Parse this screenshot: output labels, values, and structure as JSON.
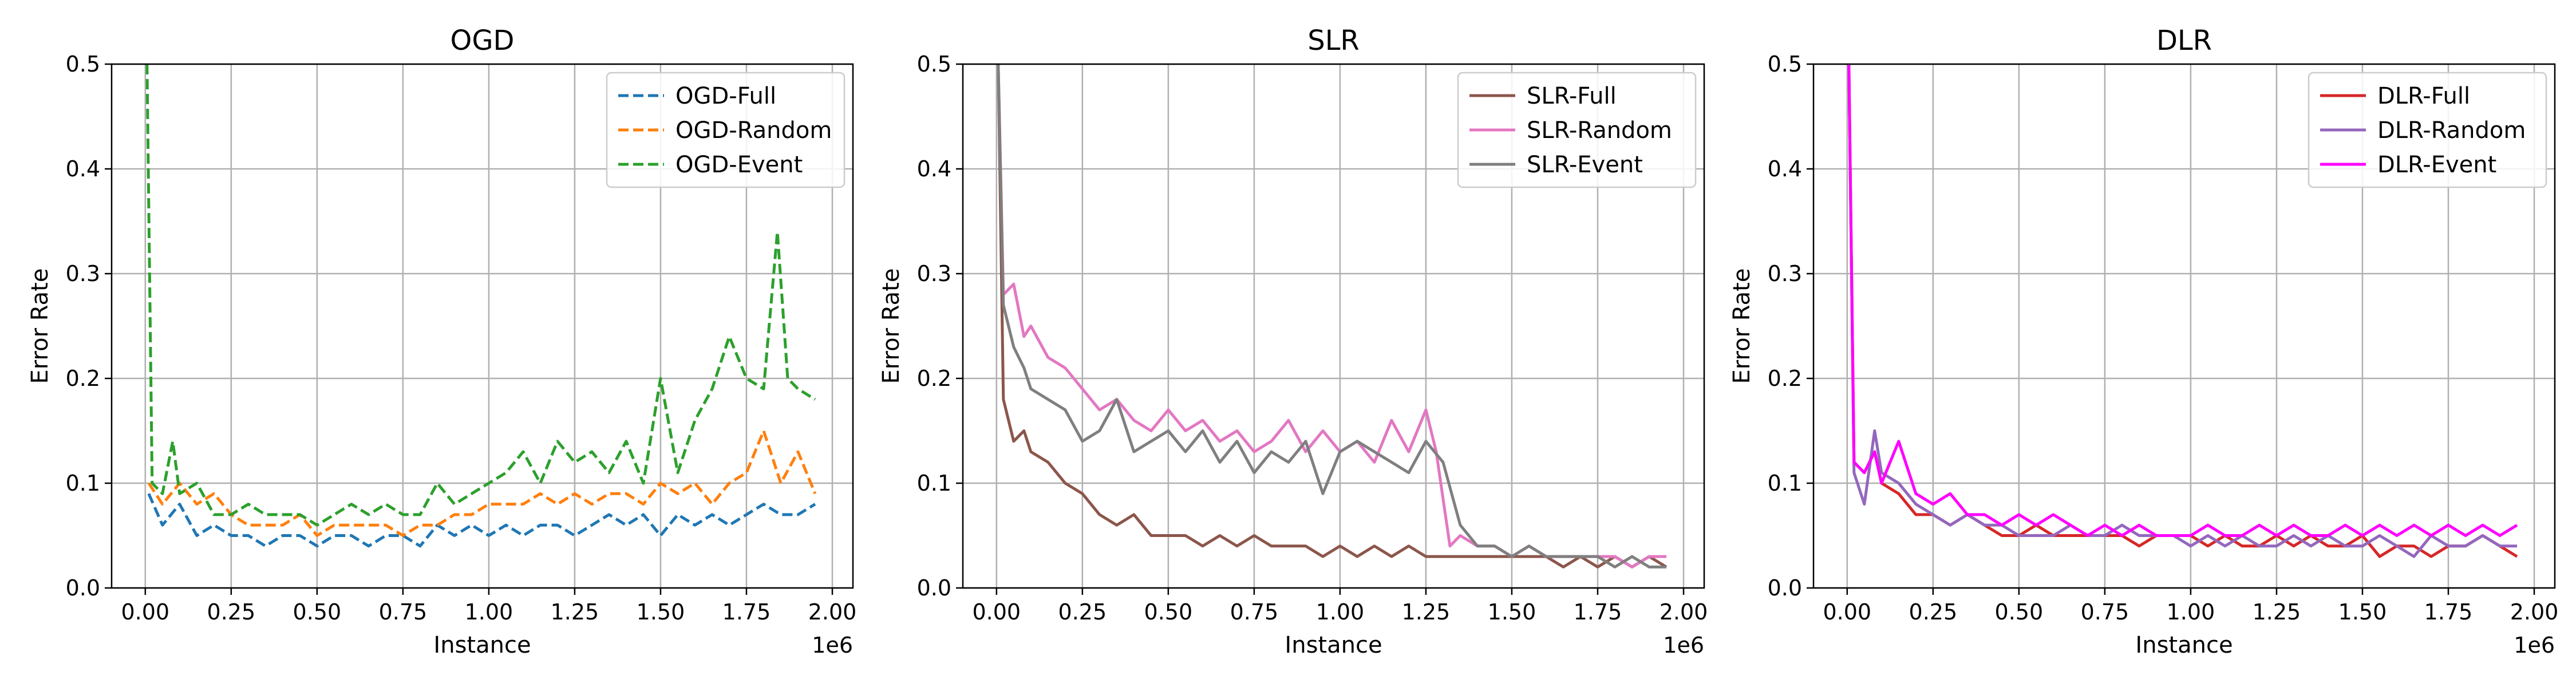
{
  "chart_data": [
    {
      "type": "line",
      "title": "OGD",
      "xlabel": "Instance",
      "ylabel": "Error Rate",
      "x_offset_label": "1e6",
      "xlim": [
        -0.098,
        2.06
      ],
      "ylim": [
        0,
        0.5
      ],
      "xticks": [
        "0.00",
        "0.25",
        "0.50",
        "0.75",
        "1.00",
        "1.25",
        "1.50",
        "1.75",
        "2.00"
      ],
      "yticks": [
        "0.0",
        "0.1",
        "0.2",
        "0.3",
        "0.4",
        "0.5"
      ],
      "grid": true,
      "legend_position": "top-right",
      "series": [
        {
          "name": "OGD-Full",
          "color": "#1f77b4",
          "dash": "dashed",
          "x": [
            0.01,
            0.05,
            0.1,
            0.15,
            0.2,
            0.25,
            0.3,
            0.35,
            0.4,
            0.45,
            0.5,
            0.55,
            0.6,
            0.65,
            0.7,
            0.75,
            0.8,
            0.85,
            0.9,
            0.95,
            1.0,
            1.05,
            1.1,
            1.15,
            1.2,
            1.25,
            1.3,
            1.35,
            1.4,
            1.45,
            1.5,
            1.55,
            1.6,
            1.65,
            1.7,
            1.75,
            1.8,
            1.85,
            1.9,
            1.95
          ],
          "y": [
            0.09,
            0.06,
            0.08,
            0.05,
            0.06,
            0.05,
            0.05,
            0.04,
            0.05,
            0.05,
            0.04,
            0.05,
            0.05,
            0.04,
            0.05,
            0.05,
            0.04,
            0.06,
            0.05,
            0.06,
            0.05,
            0.06,
            0.05,
            0.06,
            0.06,
            0.05,
            0.06,
            0.07,
            0.06,
            0.07,
            0.05,
            0.07,
            0.06,
            0.07,
            0.06,
            0.07,
            0.08,
            0.07,
            0.07,
            0.08
          ]
        },
        {
          "name": "OGD-Random",
          "color": "#ff7f0e",
          "dash": "dashed",
          "x": [
            0.01,
            0.05,
            0.1,
            0.15,
            0.2,
            0.25,
            0.3,
            0.35,
            0.4,
            0.45,
            0.5,
            0.55,
            0.6,
            0.65,
            0.7,
            0.75,
            0.8,
            0.85,
            0.9,
            0.95,
            1.0,
            1.05,
            1.1,
            1.15,
            1.2,
            1.25,
            1.3,
            1.35,
            1.4,
            1.45,
            1.5,
            1.55,
            1.6,
            1.65,
            1.7,
            1.75,
            1.8,
            1.85,
            1.9,
            1.95
          ],
          "y": [
            0.1,
            0.08,
            0.1,
            0.08,
            0.09,
            0.07,
            0.06,
            0.06,
            0.06,
            0.07,
            0.05,
            0.06,
            0.06,
            0.06,
            0.06,
            0.05,
            0.06,
            0.06,
            0.07,
            0.07,
            0.08,
            0.08,
            0.08,
            0.09,
            0.08,
            0.09,
            0.08,
            0.09,
            0.09,
            0.08,
            0.1,
            0.09,
            0.1,
            0.08,
            0.1,
            0.11,
            0.15,
            0.1,
            0.13,
            0.09
          ]
        },
        {
          "name": "OGD-Event",
          "color": "#2ca02c",
          "dash": "dashed",
          "x": [
            0.005,
            0.02,
            0.05,
            0.08,
            0.1,
            0.15,
            0.2,
            0.25,
            0.3,
            0.35,
            0.4,
            0.45,
            0.5,
            0.55,
            0.6,
            0.65,
            0.7,
            0.75,
            0.8,
            0.85,
            0.9,
            0.95,
            1.0,
            1.05,
            1.1,
            1.15,
            1.2,
            1.25,
            1.3,
            1.35,
            1.4,
            1.45,
            1.5,
            1.55,
            1.6,
            1.65,
            1.7,
            1.75,
            1.8,
            1.84,
            1.87,
            1.9,
            1.95
          ],
          "y": [
            0.5,
            0.1,
            0.09,
            0.14,
            0.09,
            0.1,
            0.07,
            0.07,
            0.08,
            0.07,
            0.07,
            0.07,
            0.06,
            0.07,
            0.08,
            0.07,
            0.08,
            0.07,
            0.07,
            0.1,
            0.08,
            0.09,
            0.1,
            0.11,
            0.13,
            0.1,
            0.14,
            0.12,
            0.13,
            0.11,
            0.14,
            0.1,
            0.2,
            0.11,
            0.16,
            0.19,
            0.24,
            0.2,
            0.19,
            0.34,
            0.2,
            0.19,
            0.18
          ]
        }
      ]
    },
    {
      "type": "line",
      "title": "SLR",
      "xlabel": "Instance",
      "ylabel": "Error Rate",
      "x_offset_label": "1e6",
      "xlim": [
        -0.098,
        2.06
      ],
      "ylim": [
        0,
        0.5
      ],
      "xticks": [
        "0.00",
        "0.25",
        "0.50",
        "0.75",
        "1.00",
        "1.25",
        "1.50",
        "1.75",
        "2.00"
      ],
      "yticks": [
        "0.0",
        "0.1",
        "0.2",
        "0.3",
        "0.4",
        "0.5"
      ],
      "grid": true,
      "legend_position": "top-right",
      "series": [
        {
          "name": "SLR-Full",
          "color": "#8c564b",
          "dash": "solid",
          "x": [
            0.005,
            0.02,
            0.05,
            0.08,
            0.1,
            0.15,
            0.2,
            0.25,
            0.3,
            0.35,
            0.4,
            0.45,
            0.5,
            0.55,
            0.6,
            0.65,
            0.7,
            0.75,
            0.8,
            0.85,
            0.9,
            0.95,
            1.0,
            1.05,
            1.1,
            1.15,
            1.2,
            1.25,
            1.3,
            1.35,
            1.4,
            1.45,
            1.5,
            1.55,
            1.6,
            1.65,
            1.7,
            1.75,
            1.8,
            1.85,
            1.9,
            1.95
          ],
          "y": [
            0.5,
            0.18,
            0.14,
            0.15,
            0.13,
            0.12,
            0.1,
            0.09,
            0.07,
            0.06,
            0.07,
            0.05,
            0.05,
            0.05,
            0.04,
            0.05,
            0.04,
            0.05,
            0.04,
            0.04,
            0.04,
            0.03,
            0.04,
            0.03,
            0.04,
            0.03,
            0.04,
            0.03,
            0.03,
            0.03,
            0.03,
            0.03,
            0.03,
            0.03,
            0.03,
            0.02,
            0.03,
            0.02,
            0.03,
            0.02,
            0.03,
            0.02
          ]
        },
        {
          "name": "SLR-Random",
          "color": "#e377c2",
          "dash": "solid",
          "x": [
            0.005,
            0.02,
            0.05,
            0.08,
            0.1,
            0.15,
            0.2,
            0.25,
            0.3,
            0.35,
            0.4,
            0.45,
            0.5,
            0.55,
            0.6,
            0.65,
            0.7,
            0.75,
            0.8,
            0.85,
            0.9,
            0.95,
            1.0,
            1.05,
            1.1,
            1.15,
            1.2,
            1.25,
            1.28,
            1.32,
            1.35,
            1.4,
            1.45,
            1.5,
            1.55,
            1.6,
            1.65,
            1.7,
            1.75,
            1.8,
            1.85,
            1.9,
            1.95
          ],
          "y": [
            0.5,
            0.28,
            0.29,
            0.24,
            0.25,
            0.22,
            0.21,
            0.19,
            0.17,
            0.18,
            0.16,
            0.15,
            0.17,
            0.15,
            0.16,
            0.14,
            0.15,
            0.13,
            0.14,
            0.16,
            0.13,
            0.15,
            0.13,
            0.14,
            0.12,
            0.16,
            0.13,
            0.17,
            0.13,
            0.04,
            0.05,
            0.04,
            0.04,
            0.03,
            0.04,
            0.03,
            0.03,
            0.03,
            0.03,
            0.03,
            0.02,
            0.03,
            0.03
          ]
        },
        {
          "name": "SLR-Event",
          "color": "#7f7f7f",
          "dash": "solid",
          "x": [
            0.005,
            0.02,
            0.05,
            0.08,
            0.1,
            0.15,
            0.2,
            0.25,
            0.3,
            0.35,
            0.4,
            0.45,
            0.5,
            0.55,
            0.6,
            0.65,
            0.7,
            0.75,
            0.8,
            0.85,
            0.9,
            0.95,
            1.0,
            1.05,
            1.1,
            1.15,
            1.2,
            1.25,
            1.3,
            1.35,
            1.4,
            1.45,
            1.5,
            1.55,
            1.6,
            1.65,
            1.7,
            1.75,
            1.8,
            1.85,
            1.9,
            1.95
          ],
          "y": [
            0.5,
            0.27,
            0.23,
            0.21,
            0.19,
            0.18,
            0.17,
            0.14,
            0.15,
            0.18,
            0.13,
            0.14,
            0.15,
            0.13,
            0.15,
            0.12,
            0.14,
            0.11,
            0.13,
            0.12,
            0.14,
            0.09,
            0.13,
            0.14,
            0.13,
            0.12,
            0.11,
            0.14,
            0.12,
            0.06,
            0.04,
            0.04,
            0.03,
            0.04,
            0.03,
            0.03,
            0.03,
            0.03,
            0.02,
            0.03,
            0.02,
            0.02
          ]
        }
      ]
    },
    {
      "type": "line",
      "title": "DLR",
      "xlabel": "Instance",
      "ylabel": "Error Rate",
      "x_offset_label": "1e6",
      "xlim": [
        -0.098,
        2.06
      ],
      "ylim": [
        0,
        0.5
      ],
      "xticks": [
        "0.00",
        "0.25",
        "0.50",
        "0.75",
        "1.00",
        "1.25",
        "1.50",
        "1.75",
        "2.00"
      ],
      "yticks": [
        "0.0",
        "0.1",
        "0.2",
        "0.3",
        "0.4",
        "0.5"
      ],
      "grid": true,
      "legend_position": "top-right",
      "series": [
        {
          "name": "DLR-Full",
          "color": "#d62728",
          "dash": "solid",
          "x": [
            0.005,
            0.02,
            0.05,
            0.08,
            0.1,
            0.15,
            0.2,
            0.25,
            0.3,
            0.35,
            0.4,
            0.45,
            0.5,
            0.55,
            0.6,
            0.65,
            0.7,
            0.75,
            0.8,
            0.85,
            0.9,
            0.95,
            1.0,
            1.05,
            1.1,
            1.15,
            1.2,
            1.25,
            1.3,
            1.35,
            1.4,
            1.45,
            1.5,
            1.55,
            1.6,
            1.65,
            1.7,
            1.75,
            1.8,
            1.85,
            1.9,
            1.95
          ],
          "y": [
            0.5,
            0.12,
            0.11,
            0.13,
            0.1,
            0.09,
            0.07,
            0.07,
            0.06,
            0.07,
            0.06,
            0.05,
            0.05,
            0.06,
            0.05,
            0.05,
            0.05,
            0.05,
            0.05,
            0.04,
            0.05,
            0.05,
            0.05,
            0.04,
            0.05,
            0.04,
            0.04,
            0.05,
            0.04,
            0.05,
            0.04,
            0.04,
            0.05,
            0.03,
            0.04,
            0.04,
            0.03,
            0.04,
            0.04,
            0.05,
            0.04,
            0.03
          ]
        },
        {
          "name": "DLR-Random",
          "color": "#9467bd",
          "dash": "solid",
          "x": [
            0.005,
            0.02,
            0.05,
            0.08,
            0.1,
            0.15,
            0.2,
            0.25,
            0.3,
            0.35,
            0.4,
            0.45,
            0.5,
            0.55,
            0.6,
            0.65,
            0.7,
            0.75,
            0.8,
            0.85,
            0.9,
            0.95,
            1.0,
            1.05,
            1.1,
            1.15,
            1.2,
            1.25,
            1.3,
            1.35,
            1.4,
            1.45,
            1.5,
            1.55,
            1.6,
            1.65,
            1.7,
            1.75,
            1.8,
            1.85,
            1.9,
            1.95
          ],
          "y": [
            0.5,
            0.11,
            0.08,
            0.15,
            0.11,
            0.1,
            0.08,
            0.07,
            0.06,
            0.07,
            0.06,
            0.06,
            0.05,
            0.05,
            0.05,
            0.06,
            0.05,
            0.05,
            0.06,
            0.05,
            0.05,
            0.05,
            0.04,
            0.05,
            0.04,
            0.05,
            0.04,
            0.04,
            0.05,
            0.04,
            0.05,
            0.04,
            0.04,
            0.05,
            0.04,
            0.03,
            0.05,
            0.04,
            0.04,
            0.05,
            0.04,
            0.04
          ]
        },
        {
          "name": "DLR-Event",
          "color": "#ff00ff",
          "dash": "solid",
          "x": [
            0.005,
            0.02,
            0.05,
            0.08,
            0.1,
            0.15,
            0.2,
            0.25,
            0.3,
            0.35,
            0.4,
            0.45,
            0.5,
            0.55,
            0.6,
            0.65,
            0.7,
            0.75,
            0.8,
            0.85,
            0.9,
            0.95,
            1.0,
            1.05,
            1.1,
            1.15,
            1.2,
            1.25,
            1.3,
            1.35,
            1.4,
            1.45,
            1.5,
            1.55,
            1.6,
            1.65,
            1.7,
            1.75,
            1.8,
            1.85,
            1.9,
            1.95
          ],
          "y": [
            0.5,
            0.12,
            0.11,
            0.13,
            0.1,
            0.14,
            0.09,
            0.08,
            0.09,
            0.07,
            0.07,
            0.06,
            0.07,
            0.06,
            0.07,
            0.06,
            0.05,
            0.06,
            0.05,
            0.06,
            0.05,
            0.05,
            0.05,
            0.06,
            0.05,
            0.05,
            0.06,
            0.05,
            0.06,
            0.05,
            0.05,
            0.06,
            0.05,
            0.06,
            0.05,
            0.06,
            0.05,
            0.06,
            0.05,
            0.06,
            0.05,
            0.06
          ]
        }
      ]
    }
  ]
}
